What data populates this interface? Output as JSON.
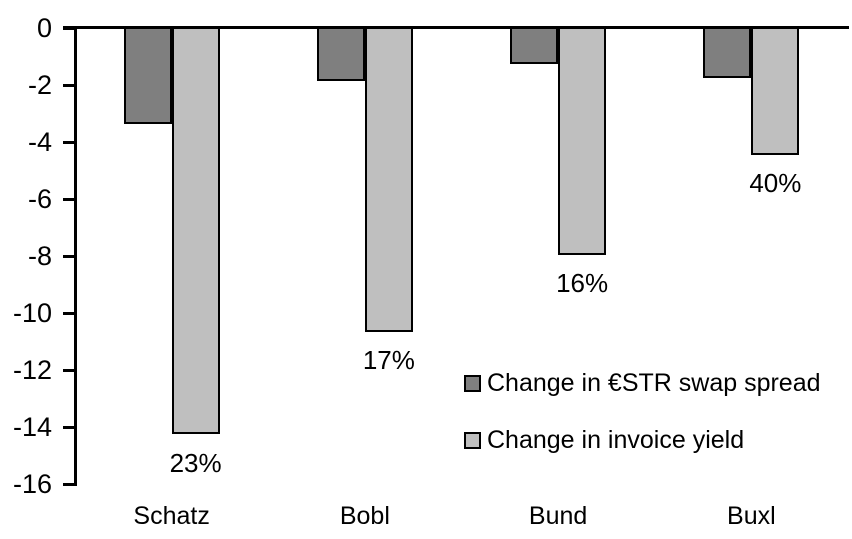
{
  "chart_data": {
    "type": "bar",
    "title": "",
    "xlabel": "",
    "ylabel": "",
    "categories": [
      "Schatz",
      "Bobl",
      "Bund",
      "Buxl"
    ],
    "series": [
      {
        "name": "Change in €STR swap spread",
        "color": "#7F7F7F",
        "values": [
          -3.3,
          -1.8,
          -1.2,
          -1.7
        ]
      },
      {
        "name": "Change in invoice yield",
        "color": "#BFBFBF",
        "values": [
          -14.2,
          -10.6,
          -7.9,
          -4.4
        ],
        "data_labels": [
          "23%",
          "17%",
          "16%",
          "40%"
        ]
      }
    ],
    "y_axis": {
      "min": -16,
      "max": 0,
      "ticks": [
        0,
        -2,
        -4,
        -6,
        -8,
        -10,
        -12,
        -14,
        -16
      ]
    },
    "grid": false,
    "legend_position": "inside-right",
    "colors": {
      "background": "#FFFFFF",
      "axis": "#000000",
      "bar_border": "#000000",
      "text": "#000000"
    }
  }
}
